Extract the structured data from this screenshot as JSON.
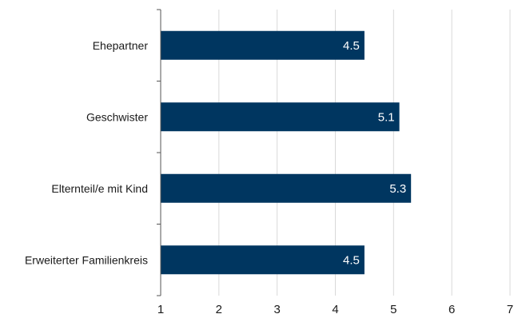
{
  "chart_data": {
    "type": "bar",
    "orientation": "horizontal",
    "title": "",
    "xlabel": "",
    "ylabel": "",
    "categories": [
      "Ehepartner",
      "Geschwister",
      "Elternteil/e mit Kind",
      "Erweiterter Familienkreis"
    ],
    "values": [
      4.5,
      5.1,
      5.3,
      4.5
    ],
    "data_labels": [
      "4.5",
      "5.1",
      "5.3",
      "4.5"
    ],
    "xlim": [
      1,
      7
    ],
    "xticks": [
      1,
      2,
      3,
      4,
      5,
      6,
      7
    ],
    "xtick_labels": [
      "1",
      "2",
      "3",
      "4",
      "5",
      "6",
      "7"
    ],
    "grid": true,
    "legend": "none",
    "bar_color": "#003660",
    "grid_color": "#d9d9d9"
  }
}
